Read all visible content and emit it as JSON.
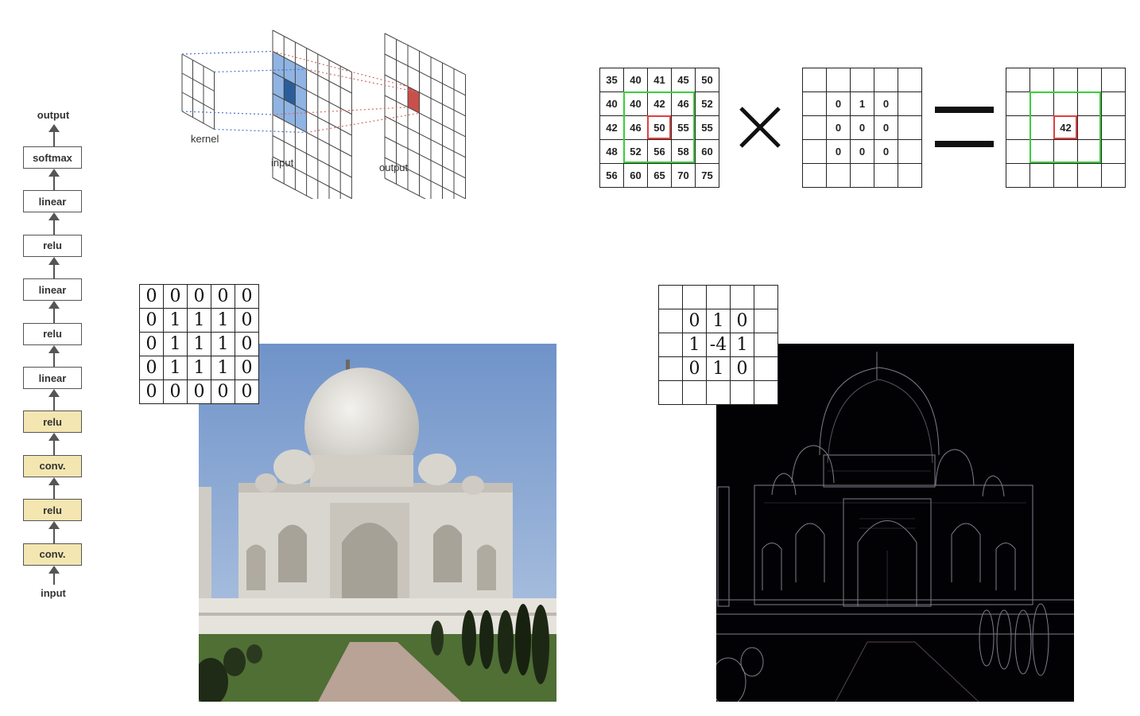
{
  "network": {
    "top_label": "output",
    "bottom_label": "input",
    "layers": [
      "softmax",
      "linear",
      "relu",
      "linear",
      "relu",
      "linear",
      "relu",
      "conv.",
      "relu",
      "conv."
    ],
    "highlight_color": "#f3e6b1"
  },
  "conv_diagram": {
    "kernel_label": "kernel",
    "input_label": "input",
    "output_label": "output",
    "receptive_color": "#8fb4e3",
    "center_color": "#2b5d9c",
    "output_cell_color": "#c9504a"
  },
  "equation": {
    "input_matrix": [
      [
        "35",
        "40",
        "41",
        "45",
        "50"
      ],
      [
        "40",
        "40",
        "42",
        "46",
        "52"
      ],
      [
        "42",
        "46",
        "50",
        "55",
        "55"
      ],
      [
        "48",
        "52",
        "56",
        "58",
        "60"
      ],
      [
        "56",
        "60",
        "65",
        "70",
        "75"
      ]
    ],
    "kernel_matrix": [
      [
        "",
        "",
        "",
        "",
        ""
      ],
      [
        "",
        "0",
        "1",
        "0",
        ""
      ],
      [
        "",
        "0",
        "0",
        "0",
        ""
      ],
      [
        "",
        "0",
        "0",
        "0",
        ""
      ],
      [
        "",
        "",
        "",
        "",
        ""
      ]
    ],
    "output_matrix": [
      [
        "",
        "",
        "",
        "",
        ""
      ],
      [
        "",
        "",
        "",
        "",
        ""
      ],
      [
        "",
        "",
        "42",
        "",
        ""
      ],
      [
        "",
        "",
        "",
        "",
        ""
      ],
      [
        "",
        "",
        "",
        "",
        ""
      ]
    ],
    "window_color": "#3ccc3c",
    "center_color": "#e04040"
  },
  "blur_kernel": [
    [
      "0",
      "0",
      "0",
      "0",
      "0"
    ],
    [
      "0",
      "1",
      "1",
      "1",
      "0"
    ],
    [
      "0",
      "1",
      "1",
      "1",
      "0"
    ],
    [
      "0",
      "1",
      "1",
      "1",
      "0"
    ],
    [
      "0",
      "0",
      "0",
      "0",
      "0"
    ]
  ],
  "edge_kernel": [
    [
      "",
      "",
      "",
      "",
      ""
    ],
    [
      "",
      "0",
      "1",
      "0",
      ""
    ],
    [
      "",
      "1",
      "-4",
      "1",
      ""
    ],
    [
      "",
      "0",
      "1",
      "0",
      ""
    ],
    [
      "",
      "",
      "",
      "",
      ""
    ]
  ],
  "photos": {
    "left": "taj-mahal-photo",
    "right": "taj-mahal-edge-detected"
  }
}
